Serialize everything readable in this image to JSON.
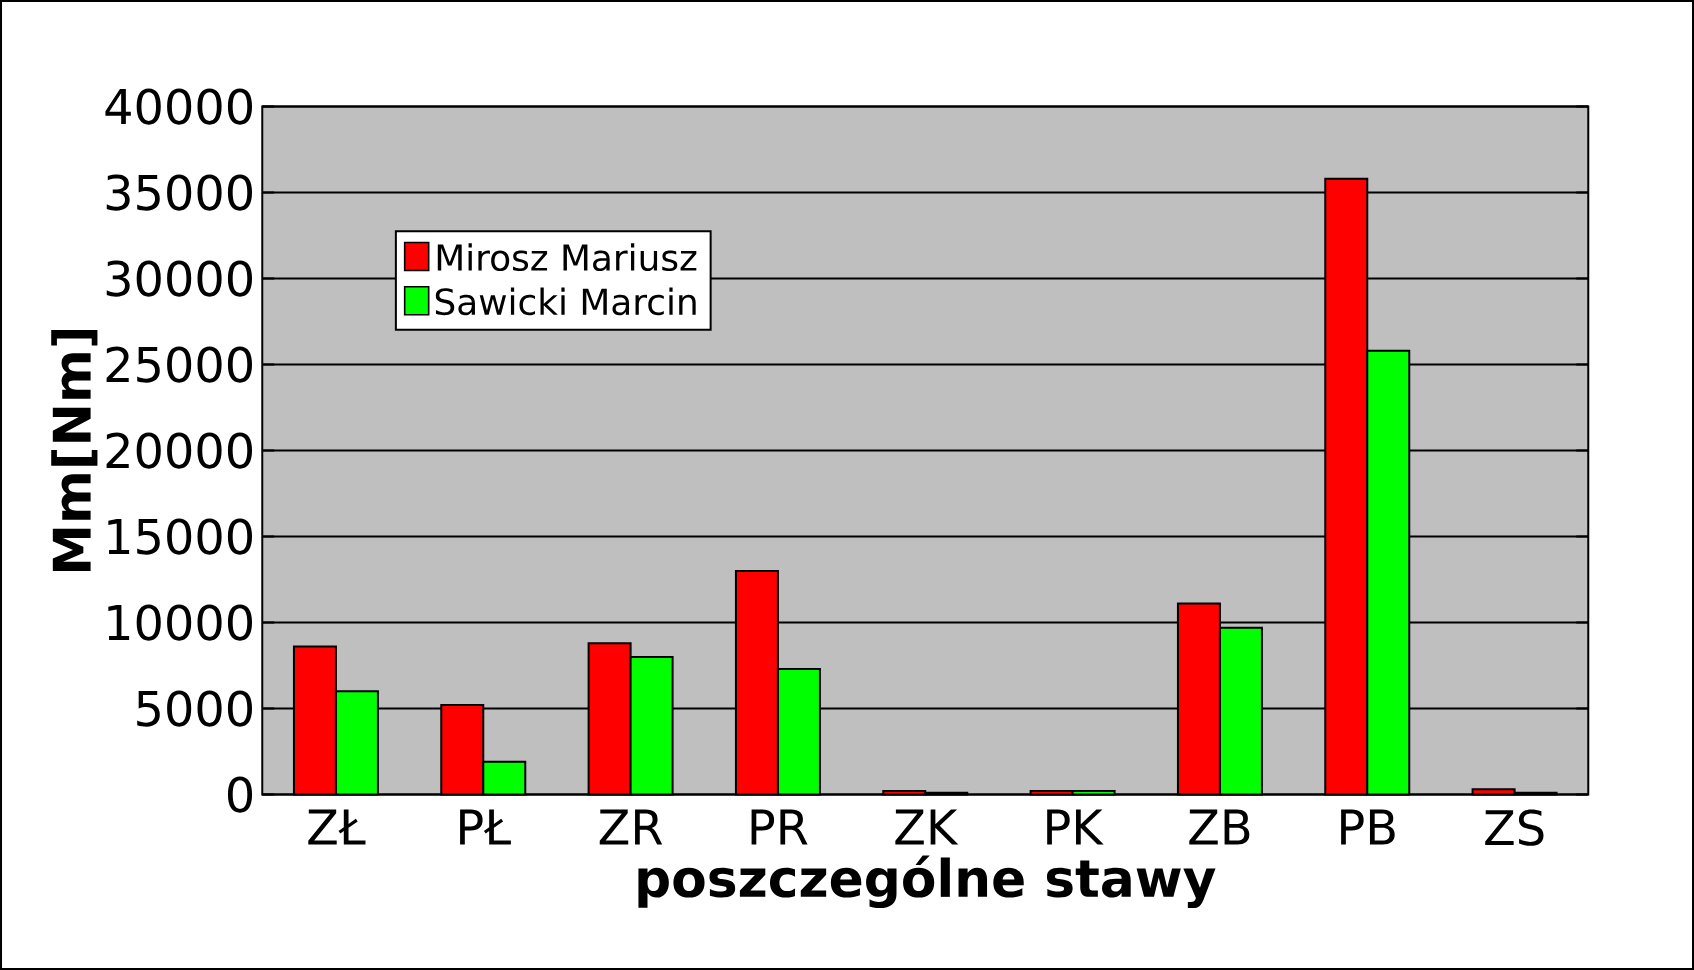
{
  "chart_data": {
    "type": "bar",
    "xlabel": "poszczególne stawy",
    "ylabel": "Mm[Nm]",
    "categories": [
      "ZŁ",
      "PŁ",
      "ZR",
      "PR",
      "ZK",
      "PK",
      "ZB",
      "PB",
      "ZS"
    ],
    "series": [
      {
        "name": "Mirosz Mariusz",
        "color": "#ff0000",
        "values": [
          8600,
          5200,
          8800,
          13000,
          200,
          200,
          11100,
          35800,
          300
        ]
      },
      {
        "name": "Sawicki Marcin",
        "color": "#00ff00",
        "values": [
          6000,
          1900,
          8000,
          7300,
          100,
          200,
          9700,
          25800,
          100
        ]
      }
    ],
    "ylim": [
      0,
      40000
    ],
    "yticks": [
      0,
      5000,
      10000,
      15000,
      20000,
      25000,
      30000,
      35000,
      40000
    ],
    "grid": "y",
    "legend": "top left"
  }
}
